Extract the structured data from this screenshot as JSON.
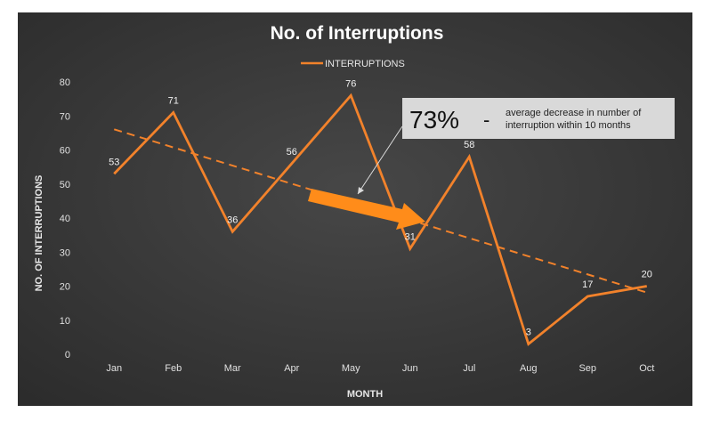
{
  "chart_data": {
    "type": "line",
    "title": "No. of Interruptions",
    "xlabel": "MONTH",
    "ylabel": "NO. OF INTERRUPTIONS",
    "categories": [
      "Jan",
      "Feb",
      "Mar",
      "Apr",
      "May",
      "Jun",
      "Jul",
      "Aug",
      "Sep",
      "Oct"
    ],
    "series": [
      {
        "name": "INTERRUPTIONS",
        "values": [
          53,
          71,
          36,
          56,
          76,
          31,
          58,
          3,
          17,
          20
        ]
      }
    ],
    "trendline": {
      "type": "linear",
      "style": "dashed"
    },
    "ylim": [
      0,
      80
    ],
    "yticks": [
      0,
      10,
      20,
      30,
      40,
      50,
      60,
      70,
      80
    ],
    "grid": false,
    "legend_position": "top",
    "annotation": {
      "value": "73%",
      "separator": "-",
      "text_line1": "average decrease in number of",
      "text_line2": "interruption within 10 months"
    },
    "colors": {
      "background": "#3a3a3a",
      "series": "#f2822b",
      "callout": "#d9d9d9"
    }
  }
}
